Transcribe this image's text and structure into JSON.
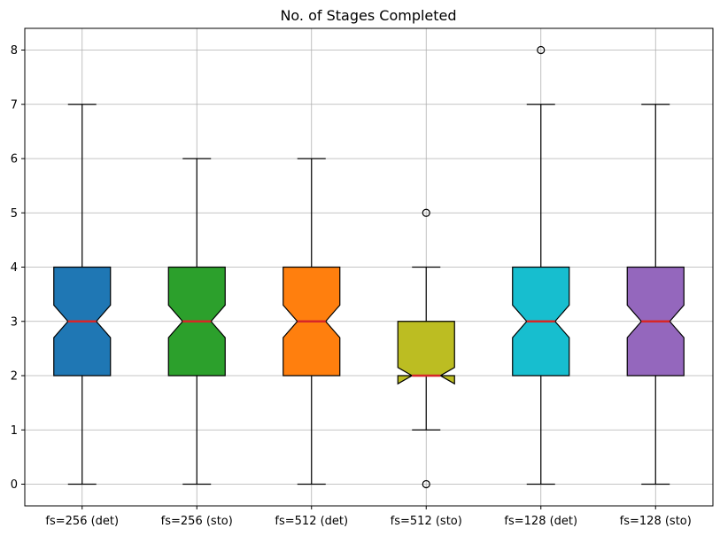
{
  "chart_data": {
    "type": "boxplot",
    "title": "No. of Stages Completed",
    "xlabel": "",
    "ylabel": "",
    "ylim": [
      -0.4,
      8.4
    ],
    "yticks": [
      0,
      1,
      2,
      3,
      4,
      5,
      6,
      7,
      8
    ],
    "grid": true,
    "notched": true,
    "series": [
      {
        "name": "fs=256 (det)",
        "whisker_low": 0,
        "q1": 2,
        "median": 3,
        "q3": 4,
        "whisker_high": 7,
        "notch_low": 2.7,
        "notch_high": 3.3,
        "fliers": [],
        "color": "#1f77b4"
      },
      {
        "name": "fs=256 (sto)",
        "whisker_low": 0,
        "q1": 2,
        "median": 3,
        "q3": 4,
        "whisker_high": 6,
        "notch_low": 2.7,
        "notch_high": 3.3,
        "fliers": [],
        "color": "#2ca02c"
      },
      {
        "name": "fs=512 (det)",
        "whisker_low": 0,
        "q1": 2,
        "median": 3,
        "q3": 4,
        "whisker_high": 6,
        "notch_low": 2.7,
        "notch_high": 3.3,
        "fliers": [],
        "color": "#ff7f0e"
      },
      {
        "name": "fs=512 (sto)",
        "whisker_low": 1,
        "q1": 2,
        "median": 2,
        "q3": 3,
        "whisker_high": 4,
        "notch_low": 1.85,
        "notch_high": 2.15,
        "fliers": [
          0,
          5
        ],
        "color": "#bcbd22"
      },
      {
        "name": "fs=128 (det)",
        "whisker_low": 0,
        "q1": 2,
        "median": 3,
        "q3": 4,
        "whisker_high": 7,
        "notch_low": 2.7,
        "notch_high": 3.3,
        "fliers": [
          8
        ],
        "color": "#17becf"
      },
      {
        "name": "fs=128 (sto)",
        "whisker_low": 0,
        "q1": 2,
        "median": 3,
        "q3": 4,
        "whisker_high": 7,
        "notch_low": 2.7,
        "notch_high": 3.3,
        "fliers": [],
        "color": "#9467bd"
      }
    ]
  }
}
